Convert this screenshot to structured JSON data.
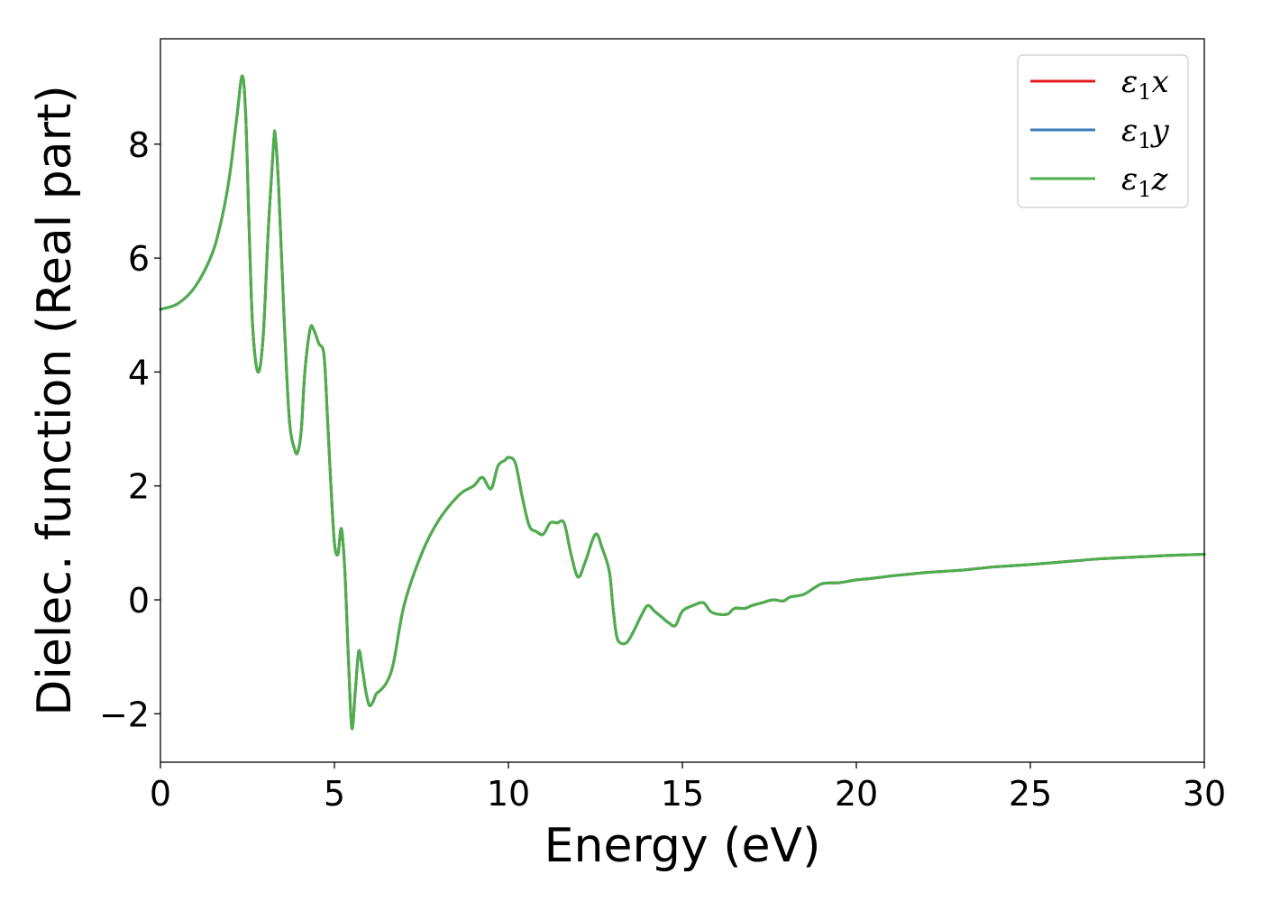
{
  "chart_data": {
    "type": "line",
    "title": "",
    "xlabel": "Energy (eV)",
    "ylabel": "Dielec. function (Real part)",
    "xlim": [
      0,
      30
    ],
    "ylim": [
      -2.85,
      9.85
    ],
    "xticks": [
      0,
      5,
      10,
      15,
      20,
      25,
      30
    ],
    "xtick_labels": [
      "0",
      "5",
      "10",
      "15",
      "20",
      "25",
      "30"
    ],
    "yticks": [
      -2,
      0,
      2,
      4,
      6,
      8
    ],
    "ytick_labels": [
      "−2",
      "0",
      "2",
      "4",
      "6",
      "8"
    ],
    "grid": false,
    "legend_position": "top-right",
    "x": [
      0,
      0.5,
      1.0,
      1.5,
      1.8,
      2.0,
      2.2,
      2.35,
      2.45,
      2.55,
      2.65,
      2.8,
      2.95,
      3.1,
      3.25,
      3.3,
      3.4,
      3.55,
      3.7,
      3.85,
      3.95,
      4.05,
      4.15,
      4.3,
      4.4,
      4.55,
      4.7,
      4.8,
      4.9,
      5.0,
      5.1,
      5.2,
      5.3,
      5.4,
      5.5,
      5.6,
      5.7,
      5.8,
      5.9,
      6.0,
      6.1,
      6.2,
      6.3,
      6.5,
      6.7,
      7.0,
      7.5,
      8.0,
      8.6,
      9.0,
      9.25,
      9.5,
      9.7,
      9.9,
      10.0,
      10.2,
      10.4,
      10.6,
      10.8,
      11.0,
      11.2,
      11.4,
      11.6,
      11.8,
      12.0,
      12.2,
      12.5,
      12.7,
      12.9,
      13.0,
      13.1,
      13.2,
      13.4,
      13.6,
      13.8,
      14.0,
      14.2,
      14.4,
      14.6,
      14.8,
      15.0,
      15.3,
      15.6,
      15.8,
      16.0,
      16.3,
      16.5,
      16.8,
      17.0,
      17.3,
      17.6,
      17.9,
      18.1,
      18.5,
      19.0,
      19.5,
      20.0,
      20.5,
      21.0,
      21.5,
      22.0,
      22.5,
      23.0,
      23.5,
      24.0,
      25.0,
      26.0,
      27.0,
      28.0,
      29.0,
      30.0
    ],
    "series": [
      {
        "name": "ε₁x",
        "color": "#e41a1c",
        "values": [
          5.1,
          5.2,
          5.5,
          6.1,
          6.8,
          7.5,
          8.5,
          9.2,
          8.5,
          6.5,
          4.8,
          4.0,
          4.6,
          6.5,
          8.0,
          8.15,
          7.2,
          5.0,
          3.2,
          2.65,
          2.6,
          3.0,
          4.0,
          4.75,
          4.75,
          4.5,
          4.3,
          3.2,
          2.0,
          1.0,
          0.8,
          1.25,
          0.5,
          -1.0,
          -2.25,
          -1.6,
          -0.9,
          -1.2,
          -1.6,
          -1.85,
          -1.8,
          -1.65,
          -1.6,
          -1.45,
          -1.1,
          -0.1,
          0.8,
          1.4,
          1.85,
          2.0,
          2.15,
          1.95,
          2.35,
          2.45,
          2.5,
          2.4,
          1.8,
          1.3,
          1.2,
          1.15,
          1.35,
          1.35,
          1.35,
          0.8,
          0.4,
          0.65,
          1.15,
          0.9,
          0.5,
          -0.1,
          -0.6,
          -0.75,
          -0.75,
          -0.55,
          -0.3,
          -0.1,
          -0.2,
          -0.3,
          -0.4,
          -0.45,
          -0.2,
          -0.1,
          -0.05,
          -0.2,
          -0.25,
          -0.25,
          -0.15,
          -0.15,
          -0.1,
          -0.05,
          0.0,
          -0.02,
          0.05,
          0.1,
          0.28,
          0.3,
          0.35,
          0.38,
          0.42,
          0.45,
          0.48,
          0.5,
          0.52,
          0.55,
          0.58,
          0.62,
          0.67,
          0.72,
          0.75,
          0.78,
          0.8
        ]
      },
      {
        "name": "ε₁y",
        "color": "#377eb8",
        "values": [
          5.1,
          5.2,
          5.5,
          6.1,
          6.8,
          7.5,
          8.5,
          9.2,
          8.5,
          6.5,
          4.8,
          4.0,
          4.6,
          6.5,
          8.0,
          8.15,
          7.2,
          5.0,
          3.2,
          2.65,
          2.6,
          3.0,
          4.0,
          4.75,
          4.75,
          4.5,
          4.3,
          3.2,
          2.0,
          1.0,
          0.8,
          1.25,
          0.5,
          -1.0,
          -2.25,
          -1.6,
          -0.9,
          -1.2,
          -1.6,
          -1.85,
          -1.8,
          -1.65,
          -1.6,
          -1.45,
          -1.1,
          -0.1,
          0.8,
          1.4,
          1.85,
          2.0,
          2.15,
          1.95,
          2.35,
          2.45,
          2.5,
          2.4,
          1.8,
          1.3,
          1.2,
          1.15,
          1.35,
          1.35,
          1.35,
          0.8,
          0.4,
          0.65,
          1.15,
          0.9,
          0.5,
          -0.1,
          -0.6,
          -0.75,
          -0.75,
          -0.55,
          -0.3,
          -0.1,
          -0.2,
          -0.3,
          -0.4,
          -0.45,
          -0.2,
          -0.1,
          -0.05,
          -0.2,
          -0.25,
          -0.25,
          -0.15,
          -0.15,
          -0.1,
          -0.05,
          0.0,
          -0.02,
          0.05,
          0.1,
          0.28,
          0.3,
          0.35,
          0.38,
          0.42,
          0.45,
          0.48,
          0.5,
          0.52,
          0.55,
          0.58,
          0.62,
          0.67,
          0.72,
          0.75,
          0.78,
          0.8
        ]
      },
      {
        "name": "ε₁z",
        "color": "#4daf4a",
        "values": [
          5.1,
          5.2,
          5.5,
          6.1,
          6.8,
          7.5,
          8.5,
          9.2,
          8.5,
          6.5,
          4.8,
          4.0,
          4.6,
          6.5,
          8.0,
          8.15,
          7.2,
          5.0,
          3.2,
          2.65,
          2.6,
          3.0,
          4.0,
          4.75,
          4.75,
          4.5,
          4.3,
          3.2,
          2.0,
          1.0,
          0.8,
          1.25,
          0.5,
          -1.0,
          -2.25,
          -1.6,
          -0.9,
          -1.2,
          -1.6,
          -1.85,
          -1.8,
          -1.65,
          -1.6,
          -1.45,
          -1.1,
          -0.1,
          0.8,
          1.4,
          1.85,
          2.0,
          2.15,
          1.95,
          2.35,
          2.45,
          2.5,
          2.4,
          1.8,
          1.3,
          1.2,
          1.15,
          1.35,
          1.35,
          1.35,
          0.8,
          0.4,
          0.65,
          1.15,
          0.9,
          0.5,
          -0.1,
          -0.6,
          -0.75,
          -0.75,
          -0.55,
          -0.3,
          -0.1,
          -0.2,
          -0.3,
          -0.4,
          -0.45,
          -0.2,
          -0.1,
          -0.05,
          -0.2,
          -0.25,
          -0.25,
          -0.15,
          -0.15,
          -0.1,
          -0.05,
          0.0,
          -0.02,
          0.05,
          0.1,
          0.28,
          0.3,
          0.35,
          0.38,
          0.42,
          0.45,
          0.48,
          0.5,
          0.52,
          0.55,
          0.58,
          0.62,
          0.67,
          0.72,
          0.75,
          0.78,
          0.8
        ]
      }
    ]
  }
}
